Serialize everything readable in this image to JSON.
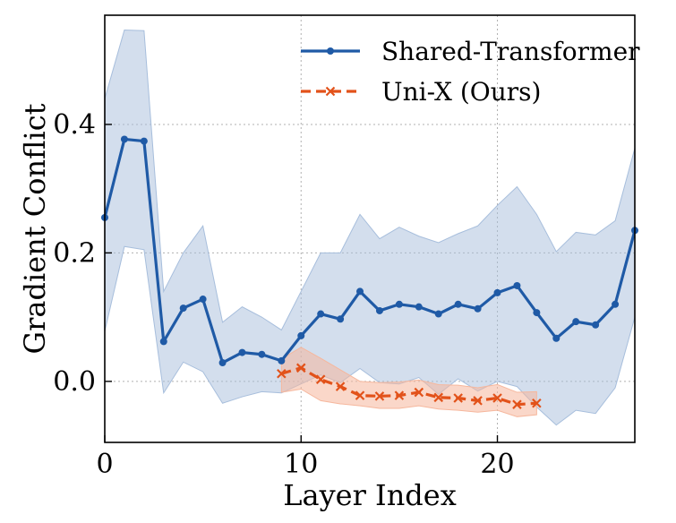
{
  "chart_data": {
    "type": "line",
    "title": "",
    "xlabel": "Layer Index",
    "ylabel": "Gradient Conflict",
    "xlim": [
      0,
      27
    ],
    "ylim": [
      -0.095,
      0.57
    ],
    "xticks": [
      0,
      10,
      20
    ],
    "xtick_labels": [
      "0",
      "10",
      "20"
    ],
    "yticks": [
      0.0,
      0.2,
      0.4
    ],
    "ytick_labels": [
      "0.0",
      "0.2",
      "0.4"
    ],
    "grid": true,
    "legend_position": "top-right",
    "series": [
      {
        "name": "Shared-Transformer",
        "color": "#1f5aa6",
        "band_color": "#a7bedc",
        "marker": "circle",
        "line_style": "solid",
        "x": [
          0,
          1,
          2,
          3,
          4,
          5,
          6,
          7,
          8,
          9,
          10,
          11,
          12,
          13,
          14,
          15,
          16,
          17,
          18,
          19,
          20,
          21,
          22,
          23,
          24,
          25,
          26,
          27
        ],
        "y": [
          0.255,
          0.377,
          0.374,
          0.062,
          0.114,
          0.128,
          0.029,
          0.045,
          0.042,
          0.032,
          0.071,
          0.105,
          0.097,
          0.14,
          0.11,
          0.12,
          0.116,
          0.105,
          0.12,
          0.113,
          0.138,
          0.149,
          0.107,
          0.067,
          0.093,
          0.088,
          0.12,
          0.235
        ],
        "upper": [
          0.44,
          0.547,
          0.546,
          0.14,
          0.2,
          0.242,
          0.092,
          0.116,
          0.1,
          0.08,
          0.14,
          0.2,
          0.2,
          0.26,
          0.222,
          0.24,
          0.226,
          0.216,
          0.23,
          0.242,
          0.274,
          0.303,
          0.26,
          0.202,
          0.232,
          0.228,
          0.25,
          0.363
        ],
        "lower": [
          0.078,
          0.21,
          0.205,
          -0.018,
          0.03,
          0.015,
          -0.034,
          -0.024,
          -0.016,
          -0.018,
          -0.004,
          0.01,
          -0.002,
          0.02,
          -0.002,
          -0.004,
          0.006,
          -0.02,
          0.004,
          -0.015,
          0.0,
          -0.008,
          -0.04,
          -0.068,
          -0.045,
          -0.05,
          -0.01,
          0.1
        ]
      },
      {
        "name": "Uni-X (Ours)",
        "color": "#e2521a",
        "band_color": "#f6b79d",
        "marker": "x",
        "line_style": "dashed",
        "x": [
          9,
          10,
          11,
          12,
          13,
          14,
          15,
          16,
          17,
          18,
          19,
          20,
          21,
          22
        ],
        "y": [
          0.012,
          0.021,
          0.003,
          -0.008,
          -0.022,
          -0.023,
          -0.022,
          -0.017,
          -0.025,
          -0.026,
          -0.03,
          -0.026,
          -0.036,
          -0.034
        ],
        "upper": [
          0.035,
          0.053,
          0.036,
          0.018,
          0.0,
          -0.002,
          -0.001,
          0.002,
          -0.005,
          -0.006,
          -0.01,
          -0.005,
          -0.017,
          -0.016
        ],
        "lower": [
          -0.017,
          -0.012,
          -0.03,
          -0.035,
          -0.038,
          -0.042,
          -0.042,
          -0.038,
          -0.043,
          -0.045,
          -0.048,
          -0.045,
          -0.055,
          -0.052
        ]
      }
    ]
  }
}
